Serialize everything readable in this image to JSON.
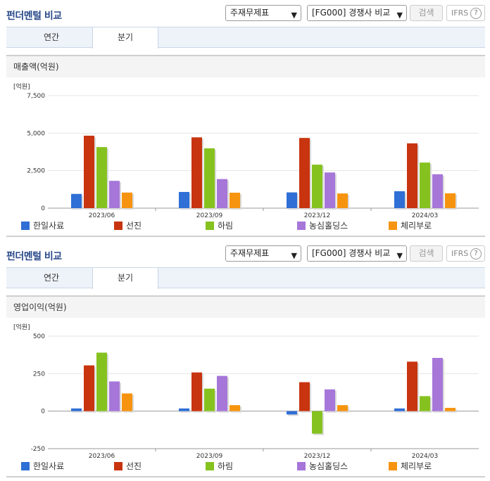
{
  "panels": [
    {
      "header": {
        "title": "펀더멘털 비교",
        "select1": "주재무제표",
        "select2": "[FG000] 경쟁사 비교",
        "search_label": "검색",
        "ifrs_label": "IFRS",
        "help_glyph": "?"
      },
      "tabs": [
        {
          "label": "연간"
        },
        {
          "label": "분기"
        }
      ],
      "active_tab": "분기",
      "section_title": "매출액(억원)"
    },
    {
      "header": {
        "title": "펀더멘털 비교",
        "select1": "주재무제표",
        "select2": "[FG000] 경쟁사 비교",
        "search_label": "검색",
        "ifrs_label": "IFRS",
        "help_glyph": "?"
      },
      "tabs": [
        {
          "label": "연간"
        },
        {
          "label": "분기"
        }
      ],
      "active_tab": "분기",
      "section_title": "영업이익(억원)"
    }
  ],
  "chart_data": [
    {
      "type": "bar",
      "unit_label": "[억원]",
      "categories": [
        "2023/06",
        "2023/09",
        "2023/12",
        "2024/03"
      ],
      "yticks": [
        "7,500",
        "5,000",
        "2,500",
        "0"
      ],
      "ylim": [
        0,
        7500
      ],
      "series": [
        {
          "name": "한일사료",
          "color": "#2f6fd6",
          "values": [
            950,
            1080,
            1050,
            1130
          ]
        },
        {
          "name": "선진",
          "color": "#c8340f",
          "values": [
            4830,
            4720,
            4680,
            4320
          ]
        },
        {
          "name": "하림",
          "color": "#86c21f",
          "values": [
            4070,
            3990,
            2900,
            3040
          ]
        },
        {
          "name": "농심홀딩스",
          "color": "#a676d9",
          "values": [
            1820,
            1940,
            2380,
            2260
          ]
        },
        {
          "name": "체리부로",
          "color": "#f7940f",
          "values": [
            1040,
            1030,
            980,
            990
          ]
        }
      ]
    },
    {
      "type": "bar",
      "unit_label": "[억원]",
      "categories": [
        "2023/06",
        "2023/09",
        "2023/12",
        "2024/03"
      ],
      "yticks": [
        "500",
        "250",
        "0",
        "-250"
      ],
      "ylim": [
        -250,
        500
      ],
      "series": [
        {
          "name": "한일사료",
          "color": "#2f6fd6",
          "values": [
            18,
            18,
            -22,
            18
          ]
        },
        {
          "name": "선진",
          "color": "#c8340f",
          "values": [
            305,
            258,
            193,
            330
          ]
        },
        {
          "name": "하림",
          "color": "#86c21f",
          "values": [
            390,
            150,
            -150,
            100
          ]
        },
        {
          "name": "농심홀딩스",
          "color": "#a676d9",
          "values": [
            198,
            235,
            145,
            355
          ]
        },
        {
          "name": "체리부로",
          "color": "#f7940f",
          "values": [
            118,
            40,
            40,
            22
          ]
        }
      ]
    }
  ]
}
